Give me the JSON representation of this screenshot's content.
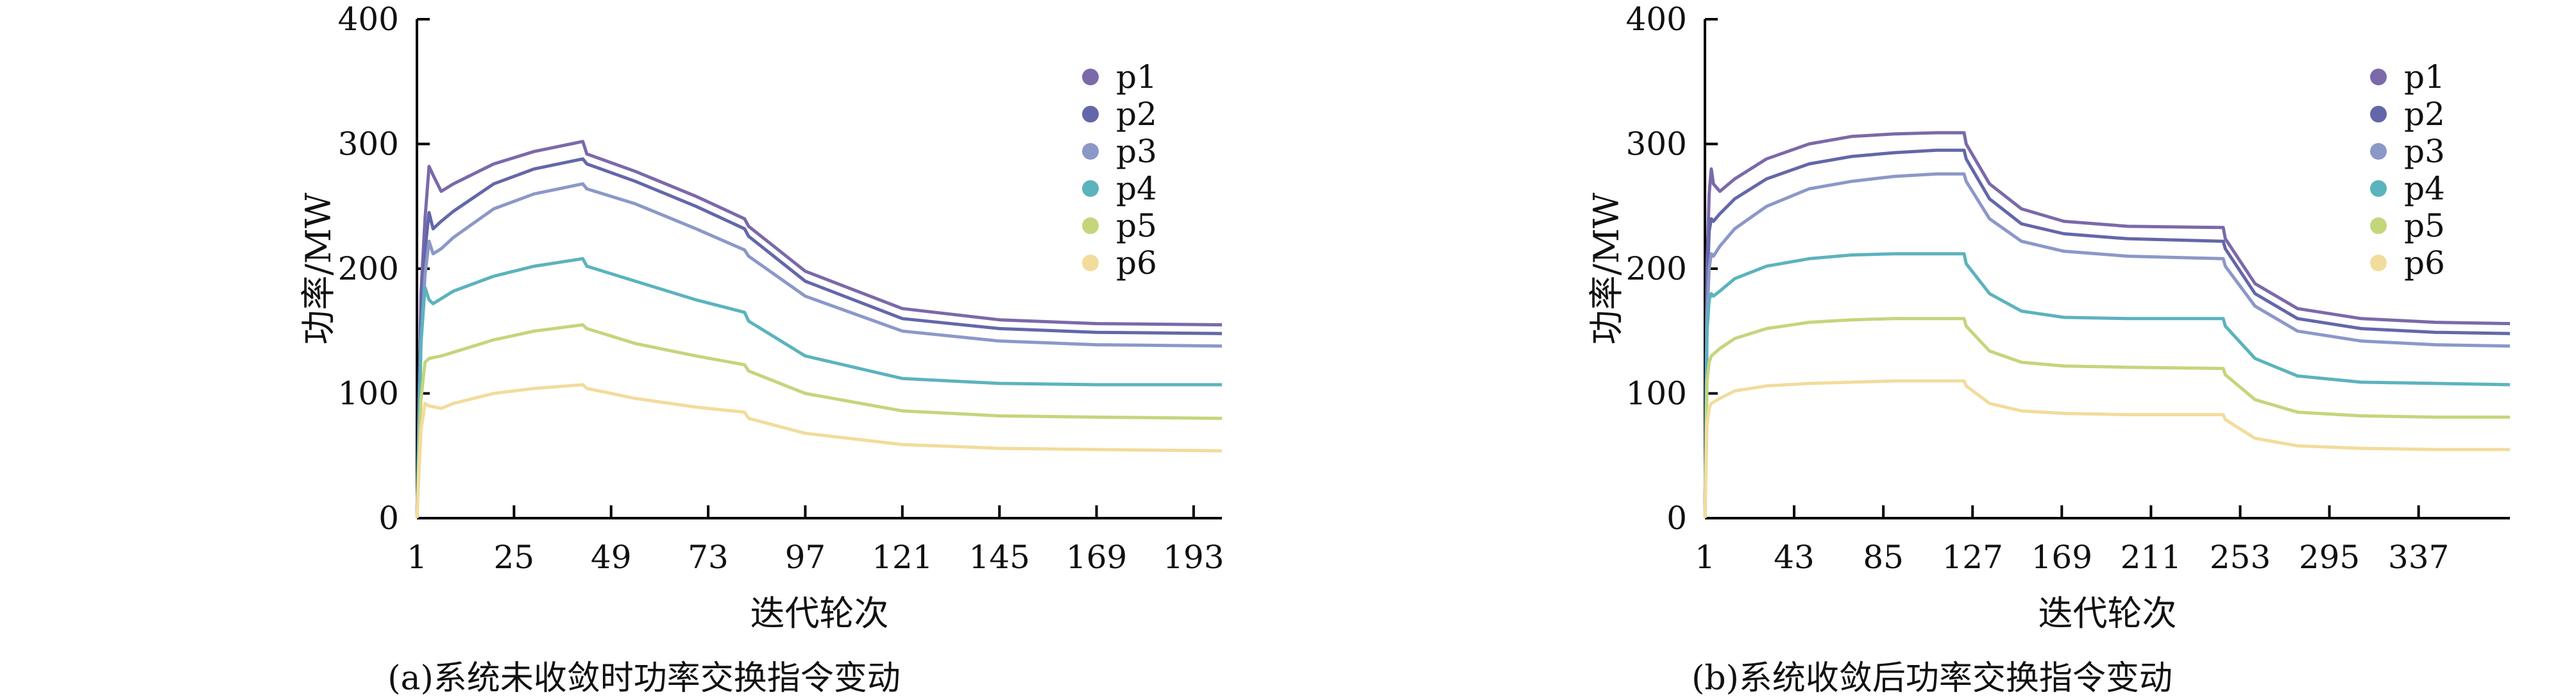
{
  "series_colors": {
    "p1": "#7b69aa",
    "p2": "#6367a9",
    "p3": "#8b98c8",
    "p4": "#5bb3bd",
    "p5": "#c3d67c",
    "p6": "#f2dc9c"
  },
  "chart_data": [
    {
      "type": "line",
      "caption": "(a)系统未收敛时功率交换指令变动",
      "xlabel": "迭代轮次",
      "ylabel": "功率/MW",
      "xlim": [
        1,
        200
      ],
      "ylim": [
        0,
        400
      ],
      "xticks": [
        1,
        25,
        49,
        73,
        97,
        121,
        145,
        169,
        193
      ],
      "yticks": [
        0,
        100,
        200,
        300,
        400
      ],
      "legend_position": "top-right",
      "series": [
        {
          "name": "p1",
          "points": [
            [
              1,
              0
            ],
            [
              2,
              180
            ],
            [
              3,
              240
            ],
            [
              4,
              282
            ],
            [
              5,
              275
            ],
            [
              7,
              262
            ],
            [
              10,
              268
            ],
            [
              20,
              284
            ],
            [
              30,
              294
            ],
            [
              42,
              302
            ],
            [
              43,
              292
            ],
            [
              55,
              278
            ],
            [
              70,
              258
            ],
            [
              82,
              240
            ],
            [
              83,
              234
            ],
            [
              97,
              198
            ],
            [
              121,
              168
            ],
            [
              145,
              159
            ],
            [
              169,
              156
            ],
            [
              200,
              155
            ]
          ]
        },
        {
          "name": "p2",
          "points": [
            [
              1,
              0
            ],
            [
              2,
              160
            ],
            [
              3,
              215
            ],
            [
              4,
              245
            ],
            [
              5,
              232
            ],
            [
              7,
              238
            ],
            [
              10,
              246
            ],
            [
              20,
              268
            ],
            [
              30,
              280
            ],
            [
              42,
              288
            ],
            [
              43,
              284
            ],
            [
              55,
              270
            ],
            [
              70,
              250
            ],
            [
              82,
              232
            ],
            [
              83,
              226
            ],
            [
              97,
              190
            ],
            [
              121,
              160
            ],
            [
              145,
              152
            ],
            [
              169,
              149
            ],
            [
              200,
              148
            ]
          ]
        },
        {
          "name": "p3",
          "points": [
            [
              1,
              0
            ],
            [
              2,
              140
            ],
            [
              3,
              195
            ],
            [
              4,
              222
            ],
            [
              5,
              212
            ],
            [
              7,
              216
            ],
            [
              10,
              225
            ],
            [
              20,
              248
            ],
            [
              30,
              260
            ],
            [
              42,
              268
            ],
            [
              43,
              264
            ],
            [
              55,
              252
            ],
            [
              70,
              232
            ],
            [
              82,
              215
            ],
            [
              83,
              210
            ],
            [
              97,
              178
            ],
            [
              121,
              150
            ],
            [
              145,
              142
            ],
            [
              169,
              139
            ],
            [
              200,
              138
            ]
          ]
        },
        {
          "name": "p4",
          "points": [
            [
              1,
              0
            ],
            [
              2,
              140
            ],
            [
              3,
              185
            ],
            [
              4,
              175
            ],
            [
              5,
              172
            ],
            [
              7,
              176
            ],
            [
              10,
              182
            ],
            [
              20,
              194
            ],
            [
              30,
              202
            ],
            [
              42,
              208
            ],
            [
              43,
              202
            ],
            [
              55,
              190
            ],
            [
              70,
              175
            ],
            [
              82,
              165
            ],
            [
              83,
              158
            ],
            [
              97,
              130
            ],
            [
              121,
              112
            ],
            [
              145,
              108
            ],
            [
              169,
              107
            ],
            [
              200,
              107
            ]
          ]
        },
        {
          "name": "p5",
          "points": [
            [
              1,
              0
            ],
            [
              2,
              95
            ],
            [
              3,
              125
            ],
            [
              4,
              128
            ],
            [
              7,
              130
            ],
            [
              10,
              133
            ],
            [
              20,
              143
            ],
            [
              30,
              150
            ],
            [
              42,
              155
            ],
            [
              43,
              152
            ],
            [
              55,
              140
            ],
            [
              70,
              130
            ],
            [
              82,
              123
            ],
            [
              83,
              118
            ],
            [
              97,
              100
            ],
            [
              121,
              86
            ],
            [
              145,
              82
            ],
            [
              169,
              81
            ],
            [
              200,
              80
            ]
          ]
        },
        {
          "name": "p6",
          "points": [
            [
              1,
              0
            ],
            [
              2,
              70
            ],
            [
              3,
              92
            ],
            [
              4,
              90
            ],
            [
              7,
              88
            ],
            [
              10,
              92
            ],
            [
              20,
              100
            ],
            [
              30,
              104
            ],
            [
              42,
              107
            ],
            [
              43,
              104
            ],
            [
              55,
              96
            ],
            [
              70,
              89
            ],
            [
              82,
              85
            ],
            [
              83,
              80
            ],
            [
              97,
              68
            ],
            [
              121,
              59
            ],
            [
              145,
              56
            ],
            [
              169,
              55
            ],
            [
              200,
              54
            ]
          ]
        }
      ]
    },
    {
      "type": "line",
      "caption": "(b)系统收敛后功率交换指令变动",
      "xlabel": "迭代轮次",
      "ylabel": "功率/MW",
      "xlim": [
        1,
        380
      ],
      "ylim": [
        0,
        400
      ],
      "xticks": [
        1,
        43,
        85,
        127,
        169,
        211,
        253,
        295,
        337
      ],
      "yticks": [
        0,
        100,
        200,
        300,
        400
      ],
      "legend_position": "top-right",
      "series": [
        {
          "name": "p1",
          "points": [
            [
              1,
              0
            ],
            [
              2,
              200
            ],
            [
              3,
              260
            ],
            [
              4,
              280
            ],
            [
              5,
              268
            ],
            [
              8,
              262
            ],
            [
              15,
              272
            ],
            [
              30,
              288
            ],
            [
              50,
              300
            ],
            [
              70,
              306
            ],
            [
              90,
              308
            ],
            [
              110,
              309
            ],
            [
              123,
              309
            ],
            [
              124,
              300
            ],
            [
              135,
              268
            ],
            [
              150,
              248
            ],
            [
              170,
              238
            ],
            [
              200,
              234
            ],
            [
              245,
              233
            ],
            [
              246,
              224
            ],
            [
              260,
              188
            ],
            [
              280,
              168
            ],
            [
              310,
              160
            ],
            [
              345,
              157
            ],
            [
              380,
              156
            ]
          ]
        },
        {
          "name": "p2",
          "points": [
            [
              1,
              0
            ],
            [
              2,
              180
            ],
            [
              3,
              230
            ],
            [
              4,
              240
            ],
            [
              5,
              238
            ],
            [
              8,
              244
            ],
            [
              15,
              256
            ],
            [
              30,
              272
            ],
            [
              50,
              284
            ],
            [
              70,
              290
            ],
            [
              90,
              293
            ],
            [
              110,
              295
            ],
            [
              123,
              295
            ],
            [
              124,
              288
            ],
            [
              135,
              256
            ],
            [
              150,
              236
            ],
            [
              170,
              228
            ],
            [
              200,
              224
            ],
            [
              245,
              222
            ],
            [
              246,
              216
            ],
            [
              260,
              180
            ],
            [
              280,
              160
            ],
            [
              310,
              152
            ],
            [
              345,
              149
            ],
            [
              380,
              148
            ]
          ]
        },
        {
          "name": "p3",
          "points": [
            [
              1,
              0
            ],
            [
              2,
              160
            ],
            [
              3,
              200
            ],
            [
              4,
              212
            ],
            [
              5,
              210
            ],
            [
              8,
              218
            ],
            [
              15,
              232
            ],
            [
              30,
              250
            ],
            [
              50,
              264
            ],
            [
              70,
              270
            ],
            [
              90,
              274
            ],
            [
              110,
              276
            ],
            [
              123,
              276
            ],
            [
              124,
              270
            ],
            [
              135,
              240
            ],
            [
              150,
              222
            ],
            [
              170,
              214
            ],
            [
              200,
              210
            ],
            [
              245,
              208
            ],
            [
              246,
              202
            ],
            [
              260,
              170
            ],
            [
              280,
              150
            ],
            [
              310,
              142
            ],
            [
              345,
              139
            ],
            [
              380,
              138
            ]
          ]
        },
        {
          "name": "p4",
          "points": [
            [
              1,
              0
            ],
            [
              2,
              150
            ],
            [
              3,
              175
            ],
            [
              4,
              180
            ],
            [
              5,
              178
            ],
            [
              8,
              182
            ],
            [
              15,
              192
            ],
            [
              30,
              202
            ],
            [
              50,
              208
            ],
            [
              70,
              211
            ],
            [
              90,
              212
            ],
            [
              110,
              212
            ],
            [
              123,
              212
            ],
            [
              124,
              204
            ],
            [
              135,
              180
            ],
            [
              150,
              166
            ],
            [
              170,
              161
            ],
            [
              200,
              160
            ],
            [
              245,
              160
            ],
            [
              246,
              154
            ],
            [
              260,
              128
            ],
            [
              280,
              114
            ],
            [
              310,
              109
            ],
            [
              345,
              108
            ],
            [
              380,
              107
            ]
          ]
        },
        {
          "name": "p5",
          "points": [
            [
              1,
              0
            ],
            [
              2,
              110
            ],
            [
              3,
              125
            ],
            [
              4,
              130
            ],
            [
              8,
              136
            ],
            [
              15,
              144
            ],
            [
              30,
              152
            ],
            [
              50,
              157
            ],
            [
              70,
              159
            ],
            [
              90,
              160
            ],
            [
              123,
              160
            ],
            [
              124,
              154
            ],
            [
              135,
              134
            ],
            [
              150,
              125
            ],
            [
              170,
              122
            ],
            [
              200,
              121
            ],
            [
              245,
              120
            ],
            [
              246,
              115
            ],
            [
              260,
              95
            ],
            [
              280,
              85
            ],
            [
              310,
              82
            ],
            [
              345,
              81
            ],
            [
              380,
              81
            ]
          ]
        },
        {
          "name": "p6",
          "points": [
            [
              1,
              0
            ],
            [
              2,
              75
            ],
            [
              3,
              88
            ],
            [
              4,
              92
            ],
            [
              8,
              96
            ],
            [
              15,
              102
            ],
            [
              30,
              106
            ],
            [
              50,
              108
            ],
            [
              70,
              109
            ],
            [
              90,
              110
            ],
            [
              123,
              110
            ],
            [
              124,
              106
            ],
            [
              135,
              92
            ],
            [
              150,
              86
            ],
            [
              170,
              84
            ],
            [
              200,
              83
            ],
            [
              245,
              83
            ],
            [
              246,
              79
            ],
            [
              260,
              64
            ],
            [
              280,
              58
            ],
            [
              310,
              56
            ],
            [
              345,
              55
            ],
            [
              380,
              55
            ]
          ]
        }
      ]
    }
  ]
}
